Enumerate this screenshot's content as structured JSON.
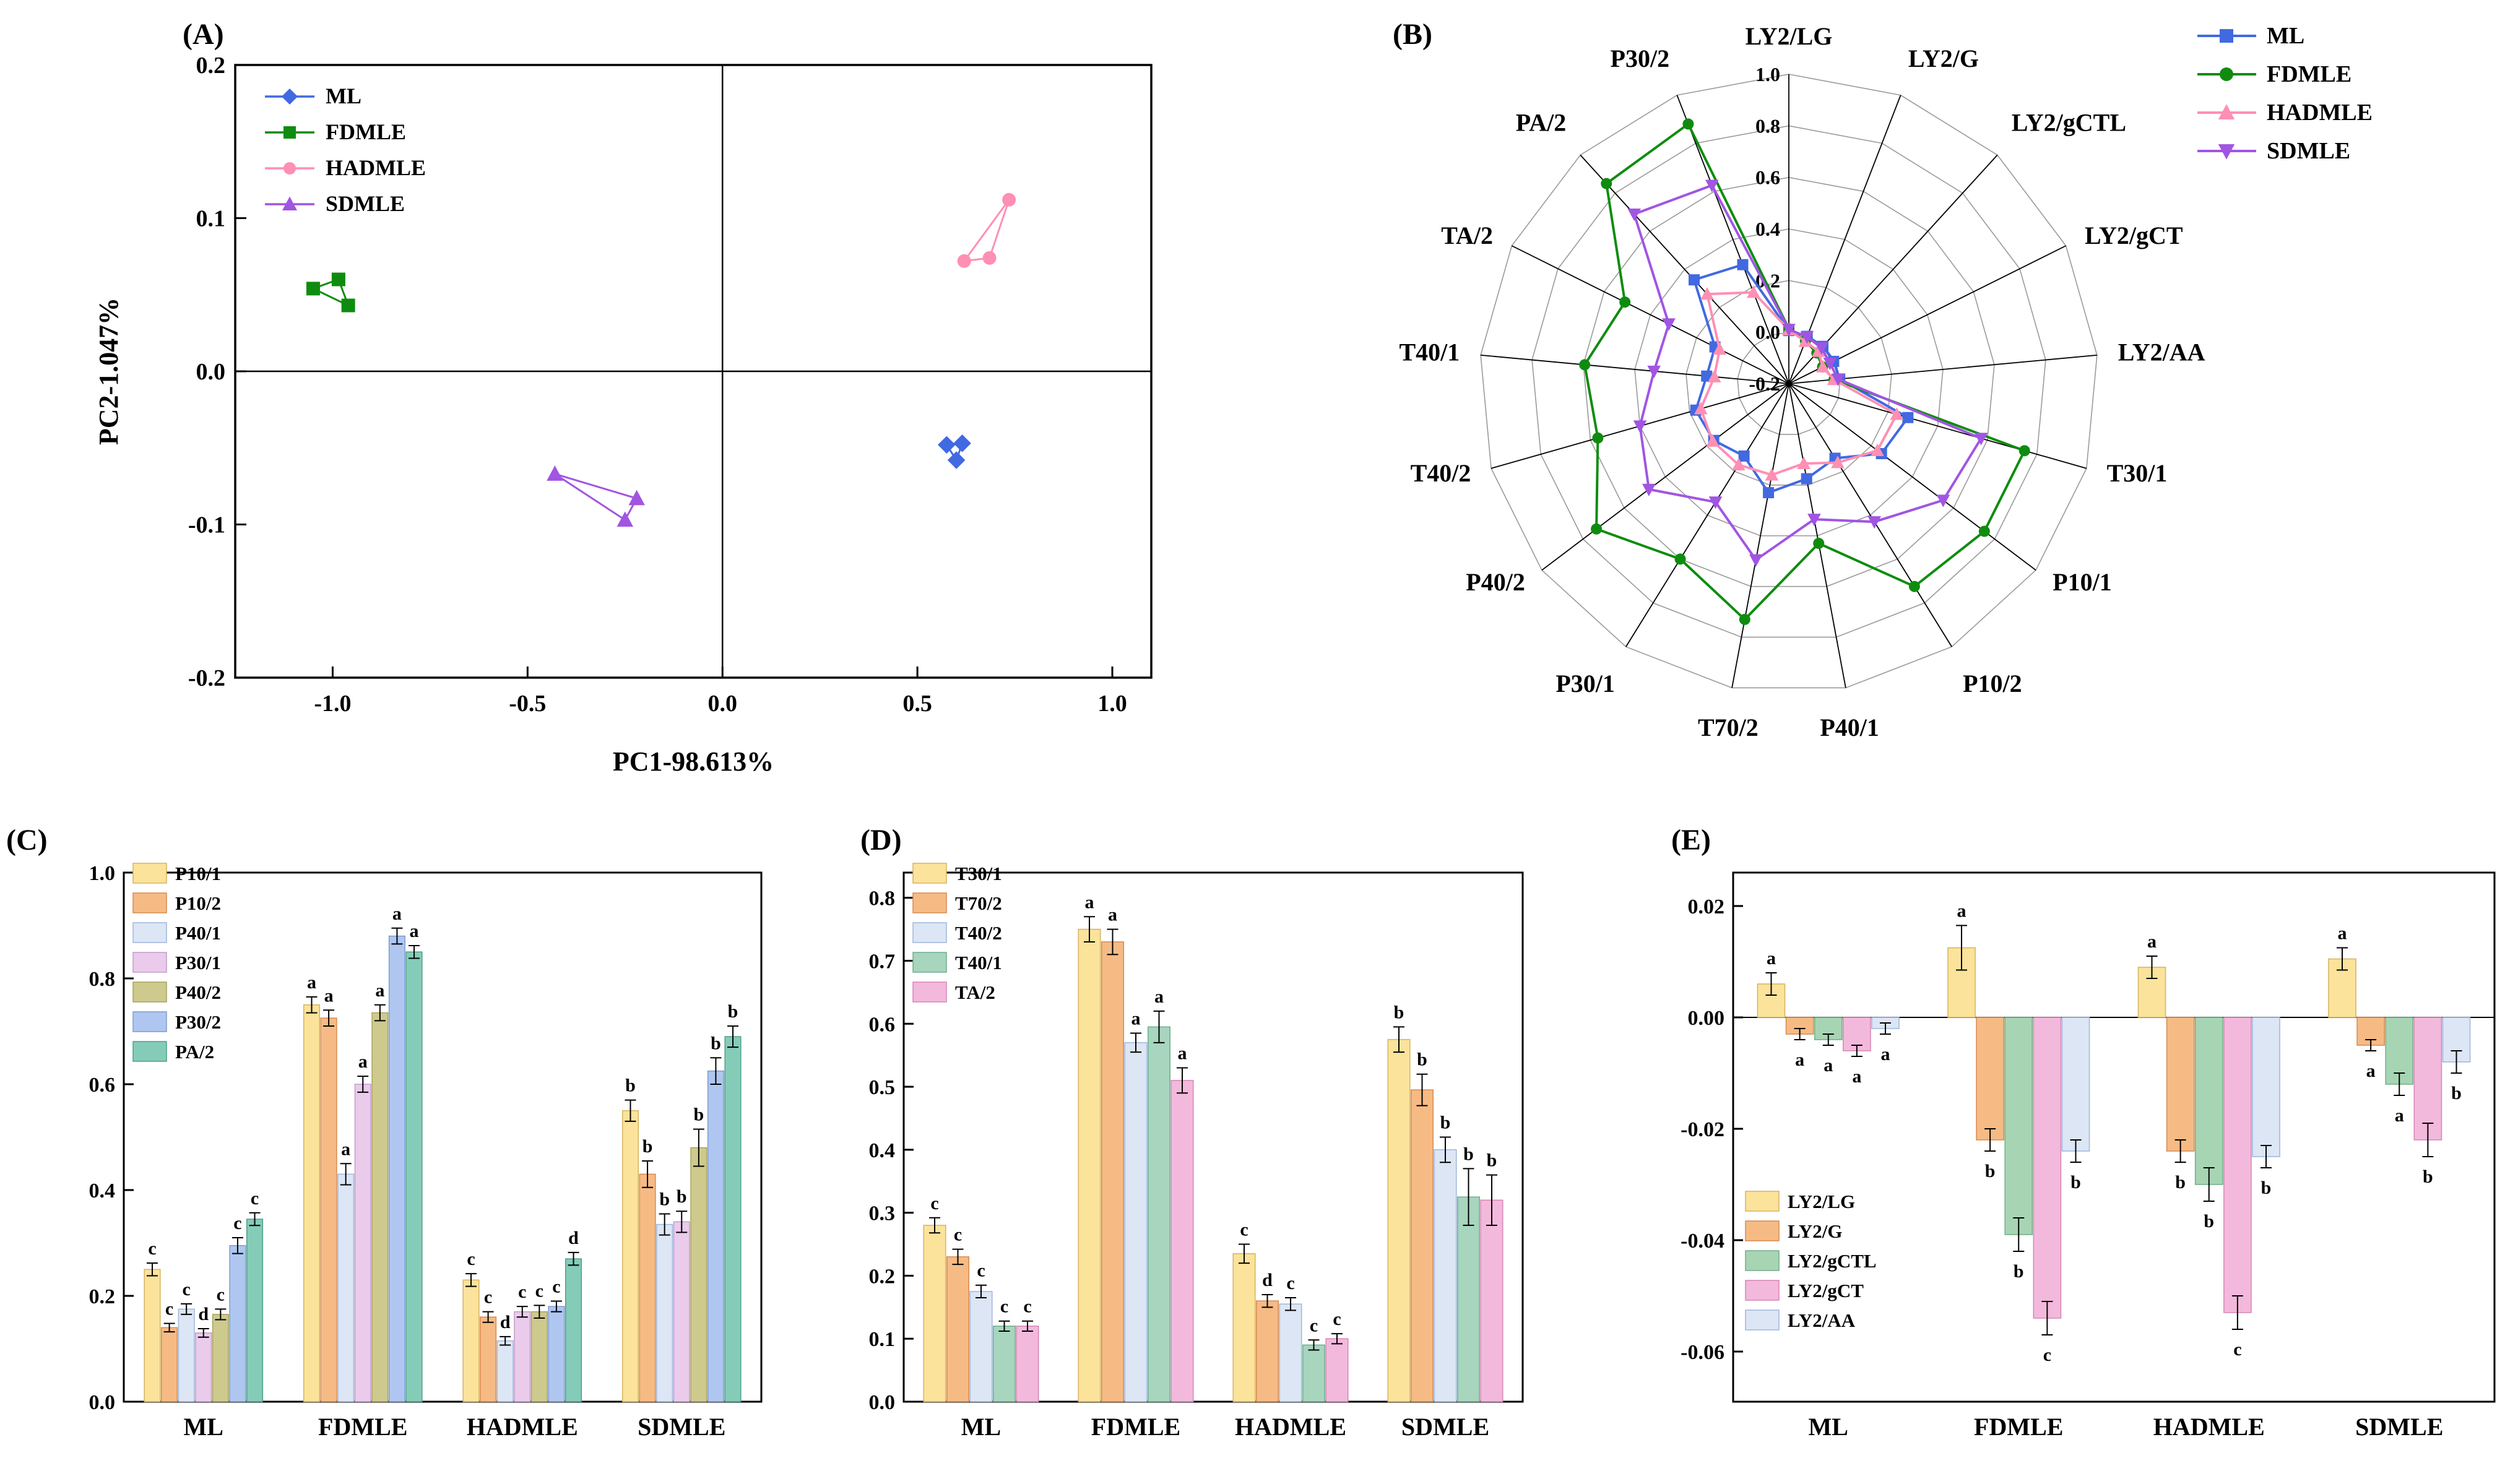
{
  "figure": {
    "panel_labels": {
      "a": "(A)",
      "b": "(B)",
      "c": "(C)",
      "d": "(D)",
      "e": "(E)"
    }
  },
  "chart_data": [
    {
      "id": "A",
      "type": "scatter",
      "xlabel": "PC1-98.613%",
      "ylabel": "PC2-1.047%",
      "xlim": [
        -1.25,
        1.1
      ],
      "ylim": [
        -0.2,
        0.2
      ],
      "xticks": [
        -1.0,
        -0.5,
        0.0,
        0.5,
        1.0
      ],
      "yticks": [
        -0.2,
        -0.1,
        0.0,
        0.1,
        0.2
      ],
      "legend_position": "top-left",
      "series": [
        {
          "name": "ML",
          "marker": "diamond",
          "color": "#4169E1",
          "points": [
            [
              0.575,
              -0.048
            ],
            [
              0.615,
              -0.047
            ],
            [
              0.6,
              -0.058
            ]
          ]
        },
        {
          "name": "FDMLE",
          "marker": "square",
          "color": "#0F8C0F",
          "points": [
            [
              -1.05,
              0.054
            ],
            [
              -0.985,
              0.06
            ],
            [
              -0.96,
              0.043
            ]
          ]
        },
        {
          "name": "HADMLE",
          "marker": "circle",
          "color": "#FF8FB3",
          "points": [
            [
              0.62,
              0.072
            ],
            [
              0.685,
              0.074
            ],
            [
              0.735,
              0.112
            ]
          ]
        },
        {
          "name": "SDMLE",
          "marker": "triangle-up",
          "color": "#A155E2",
          "points": [
            [
              -0.43,
              -0.067
            ],
            [
              -0.25,
              -0.097
            ],
            [
              -0.22,
              -0.083
            ]
          ]
        }
      ]
    },
    {
      "id": "B",
      "type": "radar",
      "axes": [
        "LY2/LG",
        "LY2/G",
        "LY2/gCTL",
        "LY2/gCT",
        "LY2/AA",
        "T30/1",
        "P10/1",
        "P10/2",
        "P40/1",
        "T70/2",
        "P30/1",
        "P40/2",
        "T40/2",
        "T40/1",
        "TA/2",
        "PA/2",
        "P30/2"
      ],
      "rlim": [
        -0.2,
        1.0
      ],
      "rticks": [
        1.0,
        0.8,
        0.6,
        0.4,
        0.2,
        0.0,
        -0.2
      ],
      "legend_position": "top-right",
      "series": [
        {
          "name": "ML",
          "marker": "square",
          "color": "#4169E1",
          "values": [
            0.006,
            -0.003,
            -0.004,
            -0.006,
            -0.002,
            0.28,
            0.25,
            0.14,
            0.175,
            0.23,
            0.13,
            0.165,
            0.175,
            0.12,
            0.12,
            0.345,
            0.295
          ]
        },
        {
          "name": "FDMLE",
          "marker": "circle",
          "color": "#0F8C0F",
          "values": [
            0.0125,
            -0.022,
            -0.039,
            -0.054,
            -0.024,
            0.75,
            0.75,
            0.725,
            0.43,
            0.73,
            0.6,
            0.735,
            0.57,
            0.595,
            0.51,
            0.85,
            0.88
          ]
        },
        {
          "name": "HADMLE",
          "marker": "triangle-up",
          "color": "#FF8FB3",
          "values": [
            0.009,
            -0.024,
            -0.03,
            -0.053,
            -0.025,
            0.235,
            0.23,
            0.16,
            0.115,
            0.16,
            0.17,
            0.17,
            0.155,
            0.09,
            0.1,
            0.27,
            0.18
          ]
        },
        {
          "name": "SDMLE",
          "marker": "triangle-down",
          "color": "#A155E2",
          "values": [
            0.0105,
            -0.005,
            -0.012,
            -0.022,
            -0.008,
            0.575,
            0.55,
            0.43,
            0.335,
            0.495,
            0.34,
            0.48,
            0.4,
            0.325,
            0.32,
            0.69,
            0.625
          ]
        }
      ]
    },
    {
      "id": "C",
      "type": "bar",
      "categories": [
        "ML",
        "FDMLE",
        "HADMLE",
        "SDMLE"
      ],
      "ylim": [
        0,
        1.0
      ],
      "yticks": [
        0.0,
        0.2,
        0.4,
        0.6,
        0.8,
        1.0
      ],
      "legend_position": "top-left",
      "series": [
        {
          "name": "P10/1",
          "fill": "#FBE39B",
          "edge": "#D7B35E",
          "values": [
            0.25,
            0.75,
            0.23,
            0.55
          ],
          "errors": [
            0.012,
            0.015,
            0.012,
            0.02
          ],
          "letters": [
            "c",
            "a",
            "c",
            "b"
          ]
        },
        {
          "name": "P10/2",
          "fill": "#F6BB85",
          "edge": "#D78A4E",
          "values": [
            0.14,
            0.725,
            0.16,
            0.43
          ],
          "errors": [
            0.008,
            0.015,
            0.01,
            0.025
          ],
          "letters": [
            "c",
            "a",
            "c",
            "b"
          ]
        },
        {
          "name": "P40/1",
          "fill": "#DCE6F5",
          "edge": "#9FB6DC",
          "values": [
            0.175,
            0.43,
            0.115,
            0.335
          ],
          "errors": [
            0.01,
            0.02,
            0.008,
            0.02
          ],
          "letters": [
            "c",
            "a",
            "d",
            "b"
          ]
        },
        {
          "name": "P30/1",
          "fill": "#EACBEB",
          "edge": "#C39BC9",
          "values": [
            0.13,
            0.6,
            0.17,
            0.34
          ],
          "errors": [
            0.008,
            0.015,
            0.01,
            0.02
          ],
          "letters": [
            "d",
            "a",
            "c",
            "b"
          ]
        },
        {
          "name": "P40/2",
          "fill": "#CECA8E",
          "edge": "#A6A35D",
          "values": [
            0.165,
            0.735,
            0.17,
            0.48
          ],
          "errors": [
            0.01,
            0.015,
            0.012,
            0.035
          ],
          "letters": [
            "c",
            "a",
            "c",
            "b"
          ]
        },
        {
          "name": "P30/2",
          "fill": "#AFC7F0",
          "edge": "#7F9BCE",
          "values": [
            0.295,
            0.88,
            0.18,
            0.625
          ],
          "errors": [
            0.015,
            0.015,
            0.01,
            0.025
          ],
          "letters": [
            "c",
            "a",
            "c",
            "b"
          ]
        },
        {
          "name": "PA/2",
          "fill": "#85CCB8",
          "edge": "#4F9F8B",
          "values": [
            0.345,
            0.85,
            0.27,
            0.69
          ],
          "errors": [
            0.012,
            0.012,
            0.012,
            0.02
          ],
          "letters": [
            "c",
            "a",
            "d",
            "b"
          ]
        }
      ]
    },
    {
      "id": "D",
      "type": "bar",
      "categories": [
        "ML",
        "FDMLE",
        "HADMLE",
        "SDMLE"
      ],
      "ylim": [
        0,
        0.84
      ],
      "yticks": [
        0.0,
        0.1,
        0.2,
        0.3,
        0.4,
        0.5,
        0.6,
        0.7,
        0.8
      ],
      "legend_position": "top-left",
      "series": [
        {
          "name": "T30/1",
          "fill": "#FBE39B",
          "edge": "#D7B35E",
          "values": [
            0.28,
            0.75,
            0.235,
            0.575
          ],
          "errors": [
            0.012,
            0.02,
            0.015,
            0.02
          ],
          "letters": [
            "c",
            "a",
            "c",
            "b"
          ]
        },
        {
          "name": "T70/2",
          "fill": "#F6BB85",
          "edge": "#D78A4E",
          "values": [
            0.23,
            0.73,
            0.16,
            0.495
          ],
          "errors": [
            0.012,
            0.02,
            0.01,
            0.025
          ],
          "letters": [
            "c",
            "a",
            "d",
            "b"
          ]
        },
        {
          "name": "T40/2",
          "fill": "#DCE6F5",
          "edge": "#9FB6DC",
          "values": [
            0.175,
            0.57,
            0.155,
            0.4
          ],
          "errors": [
            0.01,
            0.015,
            0.01,
            0.02
          ],
          "letters": [
            "c",
            "a",
            "c",
            "b"
          ]
        },
        {
          "name": "T40/1",
          "fill": "#A7D5BE",
          "edge": "#6FAE8F",
          "values": [
            0.12,
            0.595,
            0.09,
            0.325
          ],
          "errors": [
            0.008,
            0.025,
            0.008,
            0.045
          ],
          "letters": [
            "c",
            "a",
            "c",
            "b"
          ]
        },
        {
          "name": "TA/2",
          "fill": "#F3B9DC",
          "edge": "#D586B4",
          "values": [
            0.12,
            0.51,
            0.1,
            0.32
          ],
          "errors": [
            0.008,
            0.02,
            0.008,
            0.04
          ],
          "letters": [
            "c",
            "a",
            "c",
            "b"
          ]
        }
      ]
    },
    {
      "id": "E",
      "type": "bar",
      "categories": [
        "ML",
        "FDMLE",
        "HADMLE",
        "SDMLE"
      ],
      "ylim": [
        -0.069,
        0.026
      ],
      "yticks": [
        0.02,
        0.0,
        -0.02,
        -0.04,
        -0.06
      ],
      "legend_position": "mid-left",
      "series": [
        {
          "name": "LY2/LG",
          "fill": "#FBE39B",
          "edge": "#D7B35E",
          "values": [
            0.006,
            0.0125,
            0.009,
            0.0105
          ],
          "errors": [
            0.002,
            0.004,
            0.002,
            0.002
          ],
          "letters": [
            "a",
            "a",
            "a",
            "a"
          ]
        },
        {
          "name": "LY2/G",
          "fill": "#F6BB85",
          "edge": "#D78A4E",
          "values": [
            -0.003,
            -0.022,
            -0.024,
            -0.005
          ],
          "errors": [
            0.001,
            0.002,
            0.002,
            0.001
          ],
          "letters": [
            "a",
            "b",
            "b",
            "a"
          ]
        },
        {
          "name": "LY2/gCTL",
          "fill": "#A7D5B4",
          "edge": "#6FAE85",
          "values": [
            -0.004,
            -0.039,
            -0.03,
            -0.012
          ],
          "errors": [
            0.001,
            0.003,
            0.003,
            0.002
          ],
          "letters": [
            "a",
            "b",
            "b",
            "a"
          ]
        },
        {
          "name": "LY2/gCT",
          "fill": "#F3B9DC",
          "edge": "#D586B4",
          "values": [
            -0.006,
            -0.054,
            -0.053,
            -0.022
          ],
          "errors": [
            0.001,
            0.003,
            0.003,
            0.003
          ],
          "letters": [
            "a",
            "c",
            "c",
            "b"
          ]
        },
        {
          "name": "LY2/AA",
          "fill": "#DCE6F5",
          "edge": "#9FB6DC",
          "values": [
            -0.002,
            -0.024,
            -0.025,
            -0.008
          ],
          "errors": [
            0.001,
            0.002,
            0.002,
            0.002
          ],
          "letters": [
            "a",
            "b",
            "b",
            "b"
          ]
        }
      ]
    }
  ]
}
